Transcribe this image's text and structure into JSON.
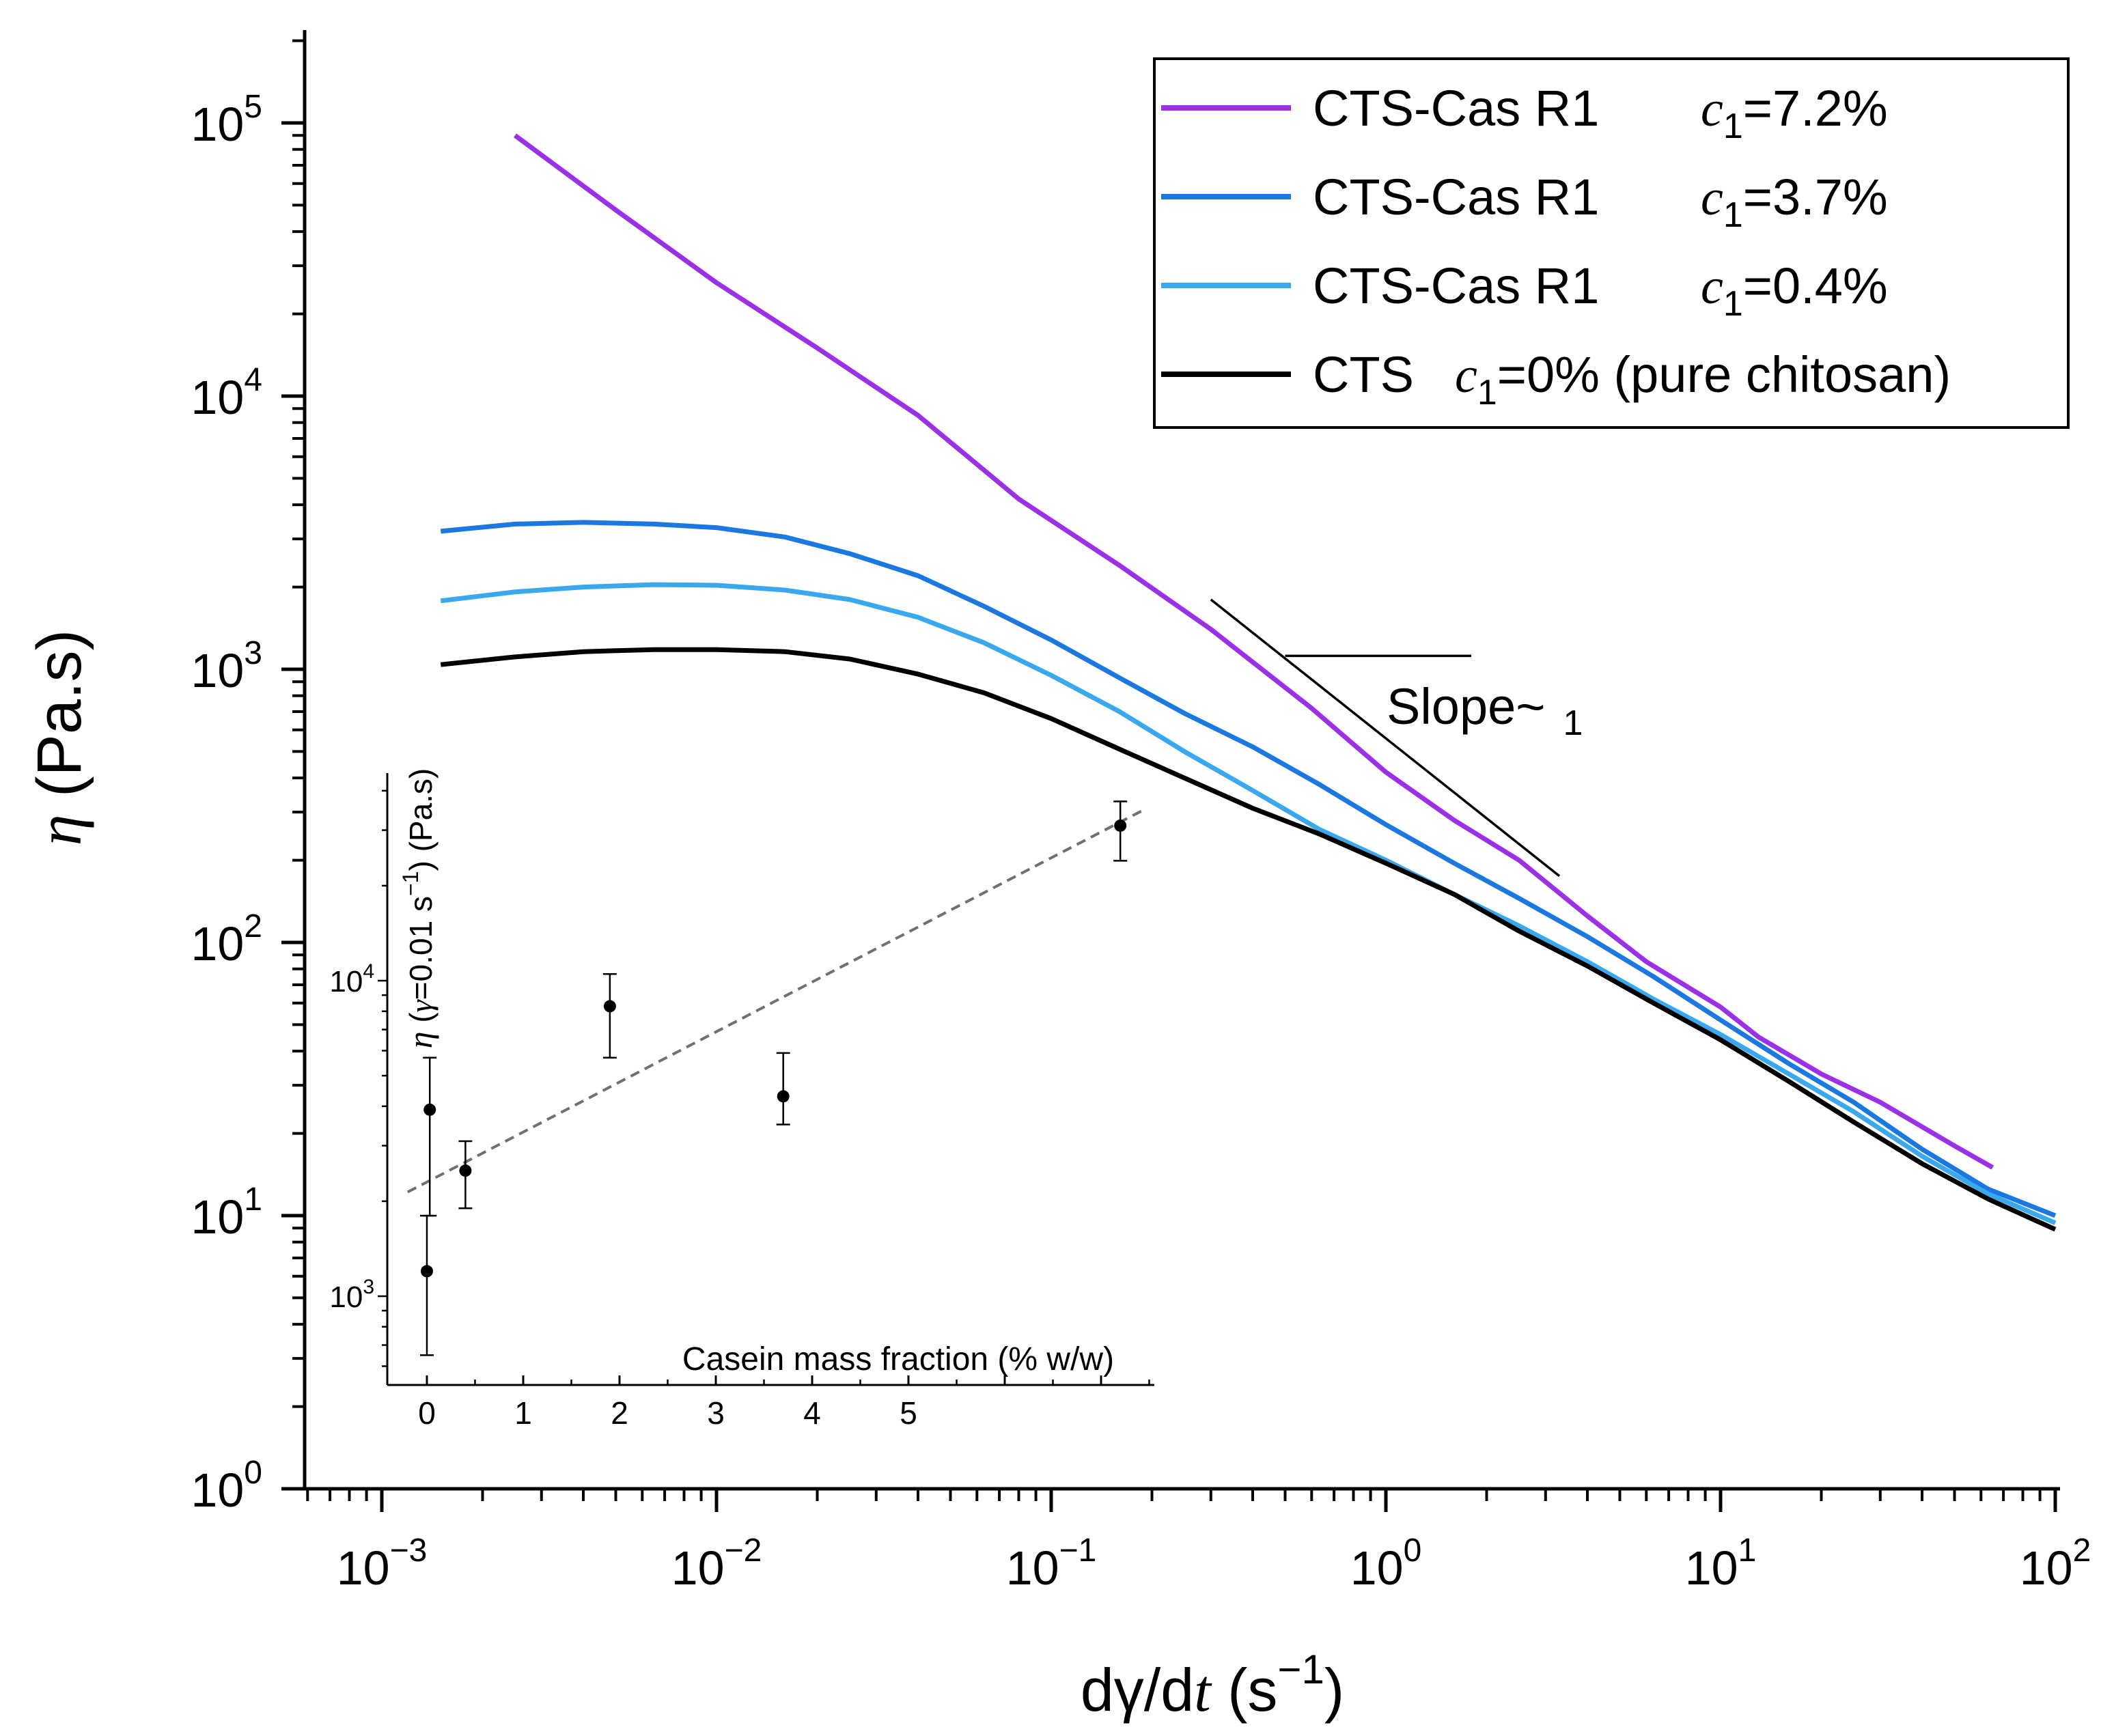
{
  "chart_data": [
    {
      "type": "line",
      "title": "",
      "xscale": "log",
      "yscale": "log",
      "xlim": [
        0.0006,
        150
      ],
      "ylim": [
        1,
        200000
      ],
      "xticks": [
        {
          "value": 0.001,
          "base": "10",
          "exp": "−3"
        },
        {
          "value": 0.01,
          "base": "10",
          "exp": "−2"
        },
        {
          "value": 0.1,
          "base": "10",
          "exp": "−1"
        },
        {
          "value": 1,
          "base": "10",
          "exp": "0"
        },
        {
          "value": 10,
          "base": "10",
          "exp": "1"
        },
        {
          "value": 100,
          "base": "10",
          "exp": "2"
        }
      ],
      "yticks": [
        {
          "value": 1,
          "base": "10",
          "exp": "0"
        },
        {
          "value": 10,
          "base": "10",
          "exp": "1"
        },
        {
          "value": 100,
          "base": "10",
          "exp": "2"
        },
        {
          "value": 1000,
          "base": "10",
          "exp": "3"
        },
        {
          "value": 10000,
          "base": "10",
          "exp": "4"
        },
        {
          "value": 100000,
          "base": "10",
          "exp": "5"
        }
      ],
      "xlabel": {
        "pre": "dγ/d",
        "ital": "t",
        "post": " (s",
        "exp": "−1",
        "close": ")"
      },
      "ylabel": {
        "sym": "η",
        "rest": " (Pa.s)"
      },
      "legend_position": "top-right",
      "series": [
        {
          "label": "CTS-Cas R1",
          "conc": {
            "sym": "c",
            "sub": "1",
            "val": "=7.2%"
          },
          "color": "#9b30e6",
          "points": [
            [
              0.0025,
              90000
            ],
            [
              0.005,
              48000
            ],
            [
              0.01,
              26000
            ],
            [
              0.02,
              15000
            ],
            [
              0.04,
              8500
            ],
            [
              0.08,
              4200
            ],
            [
              0.16,
              2400
            ],
            [
              0.3,
              1400
            ],
            [
              0.6,
              720
            ],
            [
              1.0,
              420
            ],
            [
              1.6,
              280
            ],
            [
              2.5,
              200
            ],
            [
              4.0,
              125
            ],
            [
              6.0,
              85
            ],
            [
              10.0,
              58
            ],
            [
              13.0,
              45
            ],
            [
              20.0,
              33
            ],
            [
              30.0,
              26
            ],
            [
              50.0,
              18
            ],
            [
              65.0,
              15
            ]
          ]
        },
        {
          "label": "CTS-Cas R1",
          "conc": {
            "sym": "c",
            "sub": "1",
            "val": "=3.7%"
          },
          "color": "#1b78e0",
          "points": [
            [
              0.0015,
              3200
            ],
            [
              0.0025,
              3400
            ],
            [
              0.004,
              3450
            ],
            [
              0.0065,
              3400
            ],
            [
              0.01,
              3300
            ],
            [
              0.016,
              3050
            ],
            [
              0.025,
              2650
            ],
            [
              0.04,
              2200
            ],
            [
              0.063,
              1700
            ],
            [
              0.1,
              1280
            ],
            [
              0.16,
              930
            ],
            [
              0.25,
              690
            ],
            [
              0.4,
              520
            ],
            [
              0.63,
              380
            ],
            [
              1.0,
              270
            ],
            [
              1.6,
              195
            ],
            [
              2.5,
              145
            ],
            [
              4.0,
              105
            ],
            [
              6.3,
              75
            ],
            [
              10.0,
              52
            ],
            [
              16.0,
              36
            ],
            [
              25.0,
              26
            ],
            [
              40.0,
              17.5
            ],
            [
              63.0,
              12.5
            ],
            [
              100.0,
              10.0
            ]
          ]
        },
        {
          "label": "CTS-Cas R1",
          "conc": {
            "sym": "c",
            "sub": "1",
            "val": "=0.4%"
          },
          "color": "#3aa8ee",
          "points": [
            [
              0.0015,
              1780
            ],
            [
              0.0025,
              1920
            ],
            [
              0.004,
              2000
            ],
            [
              0.0065,
              2040
            ],
            [
              0.01,
              2030
            ],
            [
              0.016,
              1950
            ],
            [
              0.025,
              1800
            ],
            [
              0.04,
              1550
            ],
            [
              0.063,
              1250
            ],
            [
              0.1,
              950
            ],
            [
              0.16,
              700
            ],
            [
              0.25,
              500
            ],
            [
              0.4,
              360
            ],
            [
              0.63,
              260
            ],
            [
              1.0,
              200
            ],
            [
              1.6,
              150
            ],
            [
              2.5,
              115
            ],
            [
              4.0,
              85
            ],
            [
              6.3,
              62
            ],
            [
              10.0,
              46
            ],
            [
              16.0,
              33
            ],
            [
              25.0,
              24
            ],
            [
              40.0,
              16.5
            ],
            [
              63.0,
              12
            ],
            [
              100.0,
              9.4
            ]
          ]
        },
        {
          "label": "CTS",
          "conc": {
            "sym": "c",
            "sub": "1",
            "val": "=0% (pure chitosan)"
          },
          "color": "#000000",
          "points": [
            [
              0.0015,
              1040
            ],
            [
              0.0025,
              1110
            ],
            [
              0.004,
              1160
            ],
            [
              0.0065,
              1180
            ],
            [
              0.01,
              1180
            ],
            [
              0.016,
              1160
            ],
            [
              0.025,
              1090
            ],
            [
              0.04,
              960
            ],
            [
              0.063,
              820
            ],
            [
              0.1,
              660
            ],
            [
              0.16,
              510
            ],
            [
              0.25,
              400
            ],
            [
              0.4,
              310
            ],
            [
              0.63,
              250
            ],
            [
              1.0,
              195
            ],
            [
              1.6,
              150
            ],
            [
              2.5,
              110
            ],
            [
              4.0,
              82
            ],
            [
              6.3,
              60
            ],
            [
              10.0,
              44
            ],
            [
              16.0,
              31
            ],
            [
              25.0,
              22
            ],
            [
              40.0,
              15.5
            ],
            [
              63.0,
              11.5
            ],
            [
              100.0,
              8.9
            ]
          ]
        }
      ],
      "reference_line": {
        "start": [
          0.3,
          1800
        ],
        "end": [
          3.3,
          175
        ],
        "horizontal_x": [
          0.5,
          1.8
        ],
        "horizontal_y": 1120,
        "label": "Slope~",
        "label_sub": "1"
      }
    },
    {
      "type": "scatter",
      "title": "",
      "xscale": "linear",
      "yscale": "log",
      "xlim": [
        -0.4,
        7.6
      ],
      "ylim": [
        480,
        48000
      ],
      "xticks": [
        "0",
        "1",
        "2",
        "3",
        "4",
        "5"
      ],
      "yticks": [
        {
          "value": 1000,
          "base": "10",
          "exp": "3"
        },
        {
          "value": 10000,
          "base": "10",
          "exp": "4"
        }
      ],
      "xlabel": "Casein mass fraction (% w/w)",
      "ylabel": {
        "sym": "η",
        "p1": " (",
        "sym2": "γ",
        "p2": "=0.01 s",
        "exp": "−1",
        "p3": ")  (Pa.s)"
      },
      "points": [
        {
          "x": 0.0,
          "y": 1200,
          "err_low": 650,
          "err_high": 1800
        },
        {
          "x": 0.03,
          "y": 3900,
          "err_low": 1800,
          "err_high": 5700
        },
        {
          "x": 0.4,
          "y": 2500,
          "err_low": 1900,
          "err_high": 3100
        },
        {
          "x": 1.9,
          "y": 8300,
          "err_low": 5700,
          "err_high": 10500
        },
        {
          "x": 3.7,
          "y": 4300,
          "err_low": 3500,
          "err_high": 5900
        },
        {
          "x": 7.2,
          "y": 31000,
          "err_low": 24000,
          "err_high": 37000
        }
      ],
      "fit_curve": {
        "x_start": -0.2,
        "x_end": 7.45,
        "y0": 2300,
        "growth": 0.365,
        "color": "#707070"
      }
    }
  ]
}
